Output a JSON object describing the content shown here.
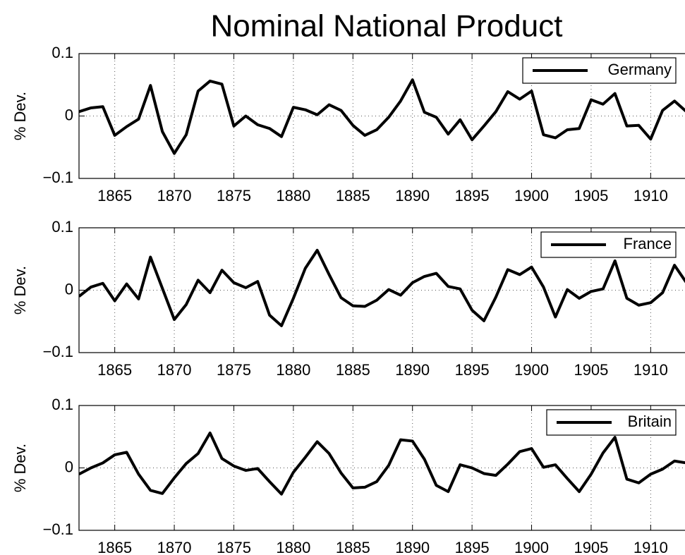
{
  "title": "Nominal National Product",
  "chart_data": [
    {
      "type": "line",
      "ylabel": "% Dev.",
      "legend": "upper right",
      "grid": true,
      "x": [
        1862,
        1863,
        1864,
        1865,
        1866,
        1867,
        1868,
        1869,
        1870,
        1871,
        1872,
        1873,
        1874,
        1875,
        1876,
        1877,
        1878,
        1879,
        1880,
        1881,
        1882,
        1883,
        1884,
        1885,
        1886,
        1887,
        1888,
        1889,
        1890,
        1891,
        1892,
        1893,
        1894,
        1895,
        1896,
        1897,
        1898,
        1899,
        1900,
        1901,
        1902,
        1903,
        1904,
        1905,
        1906,
        1907,
        1908,
        1909,
        1910,
        1911,
        1912,
        1913
      ],
      "xlim": [
        1862,
        1913
      ],
      "xticks": [
        1865,
        1870,
        1875,
        1880,
        1885,
        1890,
        1895,
        1900,
        1905,
        1910
      ],
      "ylim": [
        -0.1,
        0.1
      ],
      "yticks": [
        {
          "value": -0.1,
          "label": "−0.1"
        },
        0,
        0.1
      ],
      "series": [
        {
          "name": "Germany",
          "color": "#000000",
          "values": [
            0.007,
            0.013,
            0.015,
            -0.031,
            -0.017,
            -0.005,
            0.049,
            -0.025,
            -0.06,
            -0.03,
            0.04,
            0.056,
            0.051,
            -0.016,
            0,
            -0.014,
            -0.02,
            -0.033,
            0.014,
            0.01,
            0.002,
            0.018,
            0.009,
            -0.015,
            -0.031,
            -0.022,
            -0.002,
            0.024,
            0.058,
            0.006,
            -0.002,
            -0.029,
            -0.006,
            -0.038,
            -0.016,
            0.007,
            0.039,
            0.027,
            0.04,
            -0.03,
            -0.035,
            -0.022,
            -0.02,
            0.026,
            0.019,
            0.036,
            -0.016,
            -0.015,
            -0.037,
            0.009,
            0.024,
            0.007
          ]
        }
      ]
    },
    {
      "type": "line",
      "ylabel": "% Dev.",
      "legend": "upper right",
      "grid": true,
      "x": [
        1862,
        1863,
        1864,
        1865,
        1866,
        1867,
        1868,
        1869,
        1870,
        1871,
        1872,
        1873,
        1874,
        1875,
        1876,
        1877,
        1878,
        1879,
        1880,
        1881,
        1882,
        1883,
        1884,
        1885,
        1886,
        1887,
        1888,
        1889,
        1890,
        1891,
        1892,
        1893,
        1894,
        1895,
        1896,
        1897,
        1898,
        1899,
        1900,
        1901,
        1902,
        1903,
        1904,
        1905,
        1906,
        1907,
        1908,
        1909,
        1910,
        1911,
        1912,
        1913
      ],
      "xlim": [
        1862,
        1913
      ],
      "xticks": [
        1865,
        1870,
        1875,
        1880,
        1885,
        1890,
        1895,
        1900,
        1905,
        1910
      ],
      "ylim": [
        -0.1,
        0.1
      ],
      "yticks": [
        {
          "value": -0.1,
          "label": "−0.1"
        },
        0,
        0.1
      ],
      "series": [
        {
          "name": "France",
          "color": "#000000",
          "values": [
            -0.01,
            0.005,
            0.011,
            -0.017,
            0.01,
            -0.014,
            0.053,
            0.003,
            -0.047,
            -0.023,
            0.016,
            -0.004,
            0.032,
            0.012,
            0.004,
            0.014,
            -0.04,
            -0.057,
            -0.013,
            0.035,
            0.064,
            0.025,
            -0.012,
            -0.025,
            -0.026,
            -0.016,
            0.001,
            -0.008,
            0.012,
            0.022,
            0.027,
            0.006,
            0.002,
            -0.032,
            -0.049,
            -0.011,
            0.033,
            0.025,
            0.037,
            0.005,
            -0.043,
            0.001,
            -0.013,
            -0.002,
            0.002,
            0.047,
            -0.013,
            -0.024,
            -0.02,
            -0.004,
            0.04,
            0.012
          ]
        }
      ]
    },
    {
      "type": "line",
      "ylabel": "% Dev.",
      "legend": "upper right",
      "grid": true,
      "x": [
        1862,
        1863,
        1864,
        1865,
        1866,
        1867,
        1868,
        1869,
        1870,
        1871,
        1872,
        1873,
        1874,
        1875,
        1876,
        1877,
        1878,
        1879,
        1880,
        1881,
        1882,
        1883,
        1884,
        1885,
        1886,
        1887,
        1888,
        1889,
        1890,
        1891,
        1892,
        1893,
        1894,
        1895,
        1896,
        1897,
        1898,
        1899,
        1900,
        1901,
        1902,
        1903,
        1904,
        1905,
        1906,
        1907,
        1908,
        1909,
        1910,
        1911,
        1912,
        1913
      ],
      "xlim": [
        1862,
        1913
      ],
      "xticks": [
        1865,
        1870,
        1875,
        1880,
        1885,
        1890,
        1895,
        1900,
        1905,
        1910
      ],
      "ylim": [
        -0.1,
        0.1
      ],
      "yticks": [
        {
          "value": -0.1,
          "label": "−0.1"
        },
        0,
        0.1
      ],
      "series": [
        {
          "name": "Britain",
          "color": "#000000",
          "values": [
            -0.01,
            0,
            0.008,
            0.021,
            0.025,
            -0.01,
            -0.036,
            -0.041,
            -0.016,
            0.007,
            0.023,
            0.056,
            0.015,
            0.003,
            -0.004,
            -0.001,
            -0.022,
            -0.042,
            -0.007,
            0.017,
            0.042,
            0.023,
            -0.008,
            -0.032,
            -0.031,
            -0.022,
            0.004,
            0.045,
            0.043,
            0.014,
            -0.028,
            -0.038,
            0.005,
            0,
            -0.009,
            -0.012,
            0.006,
            0.026,
            0.031,
            0.001,
            0.005,
            -0.017,
            -0.038,
            -0.01,
            0.024,
            0.049,
            -0.018,
            -0.024,
            -0.01,
            -0.002,
            0.011,
            0.008
          ]
        }
      ]
    }
  ]
}
